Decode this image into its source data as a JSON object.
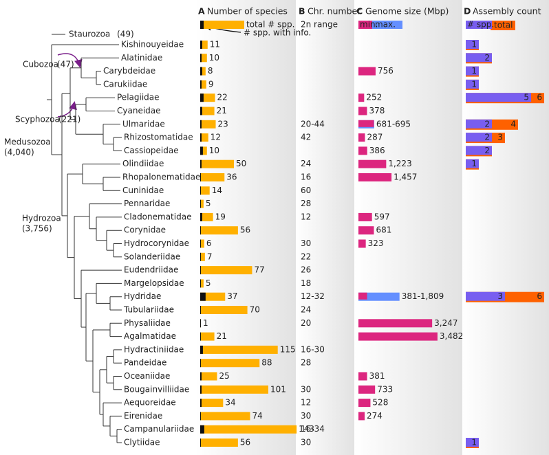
{
  "tree": {
    "clades": [
      {
        "name": "Staurozoa",
        "count": "(49)"
      },
      {
        "name": "Cubozoa",
        "count": "(47)"
      },
      {
        "name": "Scyphozoa",
        "count": "(221)"
      },
      {
        "name": "Medusozoa",
        "count": "(4,040)"
      },
      {
        "name": "Hydrozoa",
        "count": "(3,756)"
      }
    ]
  },
  "chart_data": [
    {
      "type": "bar",
      "panel": "A",
      "title": "Number of species",
      "categories": [
        "Kishinouyeidae",
        "Alatinidae",
        "Carybdeidae",
        "Carukiidae",
        "Pelagiidae",
        "Cyaneidae",
        "Ulmaridae",
        "Rhizostomatidae",
        "Cassiopeidae",
        "Olindiidae",
        "Rhopalonematidae",
        "Cuninidae",
        "Pennaridae",
        "Cladonematidae",
        "Corynidae",
        "Hydrocorynidae",
        "Solanderiidae",
        "Eudendriidae",
        "Margelopsidae",
        "Hydridae",
        "Tubulariidae",
        "Physaliidae",
        "Agalmatidae",
        "Hydractiniidae",
        "Pandeidae",
        "Oceaniidae",
        "Bougainvilliidae",
        "Aequoreidae",
        "Eirenidae",
        "Campanulariidae",
        "Clytiidae"
      ],
      "series": [
        {
          "name": "total # spp.",
          "color": "#ffb000",
          "values": [
            11,
            10,
            8,
            9,
            22,
            21,
            23,
            12,
            10,
            50,
            36,
            14,
            5,
            19,
            56,
            6,
            7,
            77,
            5,
            37,
            70,
            1,
            21,
            115,
            88,
            25,
            101,
            34,
            74,
            143,
            56
          ]
        },
        {
          "name": "# spp. with info.",
          "color": "#111111",
          "values": [
            3,
            2,
            3,
            2,
            5,
            3,
            2,
            2,
            4,
            2,
            1,
            1,
            1,
            3,
            1,
            1,
            1,
            1,
            1,
            8,
            1,
            1,
            1,
            4,
            1,
            2,
            2,
            2,
            1,
            6,
            1
          ]
        }
      ]
    },
    {
      "type": "text",
      "panel": "B",
      "title": "Chr. number",
      "subtitle": "2n range",
      "values": [
        null,
        null,
        null,
        null,
        null,
        null,
        "20-44",
        42,
        null,
        24,
        16,
        60,
        28,
        12,
        null,
        30,
        22,
        26,
        18,
        "12-32",
        24,
        20,
        null,
        "16-30",
        28,
        null,
        30,
        12,
        30,
        "16-34",
        30
      ]
    },
    {
      "type": "range",
      "panel": "C",
      "title": "Genome size (Mbp)",
      "series": [
        {
          "name": "min.",
          "color": "#dc267f",
          "values": [
            null,
            null,
            756,
            null,
            252,
            378,
            681,
            287,
            386,
            1223,
            1457,
            null,
            null,
            597,
            681,
            323,
            null,
            null,
            null,
            381,
            null,
            3247,
            3482,
            null,
            null,
            381,
            733,
            528,
            274,
            null,
            null
          ]
        },
        {
          "name": "max.",
          "color": "#648fff",
          "values": [
            null,
            null,
            null,
            null,
            null,
            null,
            695,
            null,
            null,
            null,
            null,
            null,
            null,
            null,
            null,
            null,
            null,
            null,
            null,
            1809,
            null,
            null,
            null,
            null,
            null,
            null,
            null,
            null,
            null,
            null,
            null
          ]
        }
      ],
      "value_labels": [
        null,
        null,
        "756",
        null,
        "252",
        "378",
        "681-695",
        "287",
        "386",
        "1,223",
        "1,457",
        null,
        null,
        "597",
        "681",
        "323",
        null,
        null,
        null,
        "381-1,809",
        null,
        "3,247",
        "3,482",
        null,
        null,
        "381",
        "733",
        "528",
        "274",
        null,
        null
      ]
    },
    {
      "type": "count",
      "panel": "D",
      "title": "Assembly count",
      "series": [
        {
          "name": "# spp.",
          "color": "#785ef0",
          "values": [
            1,
            2,
            1,
            1,
            5,
            null,
            2,
            2,
            2,
            1,
            null,
            null,
            null,
            null,
            null,
            null,
            null,
            null,
            null,
            3,
            null,
            null,
            null,
            null,
            null,
            null,
            null,
            null,
            null,
            null,
            1
          ]
        },
        {
          "name": "total",
          "color": "#fe6100",
          "values": [
            1,
            2,
            1,
            1,
            6,
            null,
            4,
            3,
            2,
            1,
            null,
            null,
            null,
            null,
            null,
            null,
            null,
            null,
            null,
            6,
            null,
            null,
            null,
            null,
            null,
            null,
            null,
            null,
            null,
            null,
            1
          ]
        }
      ]
    }
  ]
}
